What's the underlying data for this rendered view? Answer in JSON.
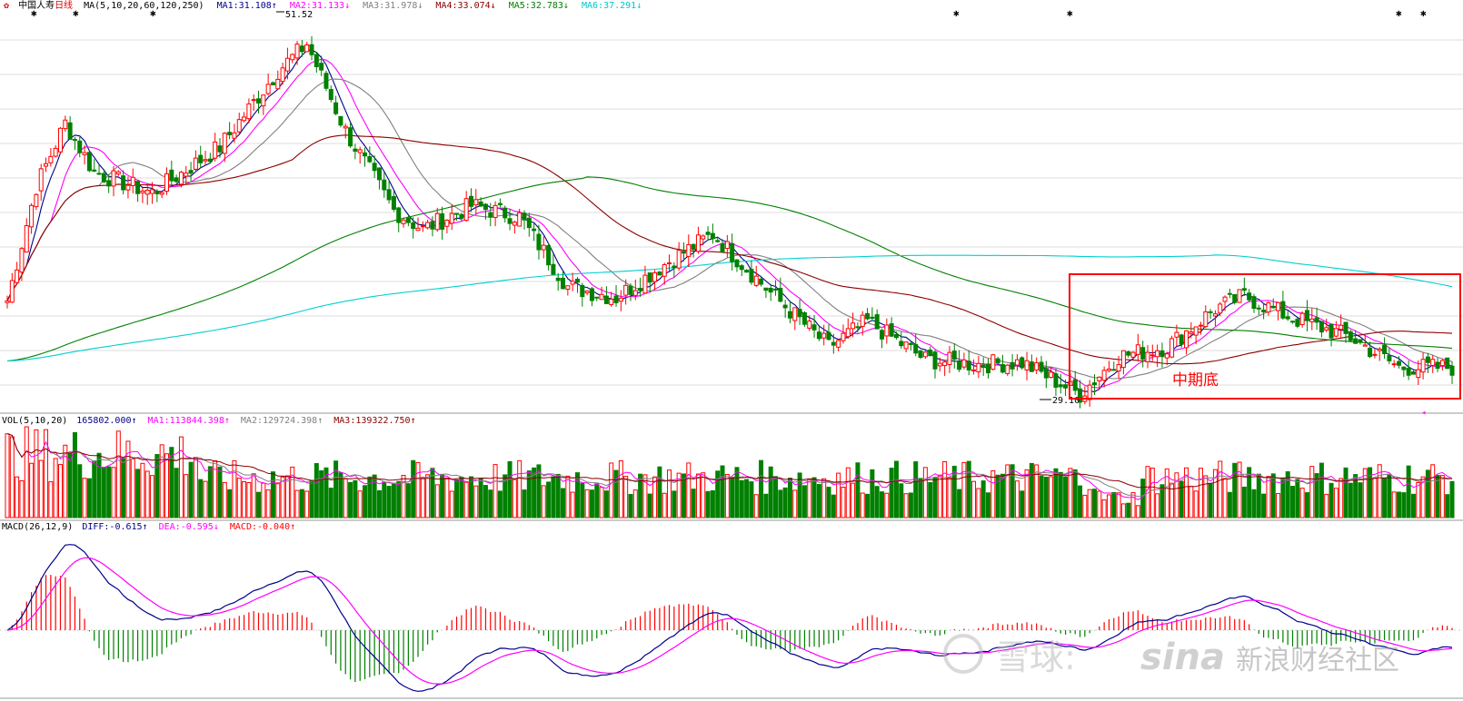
{
  "stock": {
    "name": "中国人寿",
    "period": "日线"
  },
  "price_panel": {
    "ma_spec": "MA(5,10,20,60,120,250)",
    "ma_values": [
      {
        "label": "MA1:",
        "value": "31.108↑",
        "color": "#00008b"
      },
      {
        "label": "MA2:",
        "value": "31.133↓",
        "color": "#ff00ff"
      },
      {
        "label": "MA3:",
        "value": "31.978↓",
        "color": "#808080"
      },
      {
        "label": "MA4:",
        "value": "33.074↓",
        "color": "#8b0000"
      },
      {
        "label": "MA5:",
        "value": "32.783↓",
        "color": "#008000"
      },
      {
        "label": "MA6:",
        "value": "37.291↓",
        "color": "#00d0d0"
      }
    ],
    "high_label": "51.52",
    "low_label": "29.10",
    "annotation": "中期底"
  },
  "volume_panel": {
    "spec": "VOL(5,10,20)",
    "value": "165802.000↑",
    "ma_values": [
      {
        "label": "MA1:",
        "value": "113844.398↑",
        "color": "#ff00ff"
      },
      {
        "label": "MA2:",
        "value": "129724.398↑",
        "color": "#808080"
      },
      {
        "label": "MA3:",
        "value": "139322.750↑",
        "color": "#8b0000"
      }
    ]
  },
  "macd_panel": {
    "spec": "MACD(26,12,9)",
    "values": [
      {
        "label": "DIFF:",
        "value": "-0.615↑",
        "color": "#00008b"
      },
      {
        "label": "DEA:",
        "value": "-0.595↓",
        "color": "#ff00ff"
      },
      {
        "label": "MACD:",
        "value": "-0.040↑",
        "color": "#ff0000"
      }
    ]
  },
  "watermark": {
    "xueqiu": "雪球:",
    "sina_logo": "sina",
    "sina_text": "新浪财经社区"
  },
  "colors": {
    "up": "#ff0000",
    "down": "#008000",
    "grid": "#dddddd",
    "box": "#ff0000"
  },
  "chart_data": {
    "type": "candlestick",
    "price_range_approx": [
      28.5,
      53.0
    ],
    "price_high": 51.52,
    "price_low": 29.1,
    "candle_count": 300,
    "price_path_keypoints": [
      {
        "bar": 0,
        "close": 35.3
      },
      {
        "bar": 6,
        "close": 42.5
      },
      {
        "bar": 12,
        "close": 46.5
      },
      {
        "bar": 18,
        "close": 43.4
      },
      {
        "bar": 30,
        "close": 42.1
      },
      {
        "bar": 44,
        "close": 45.0
      },
      {
        "bar": 56,
        "close": 49.8
      },
      {
        "bar": 62,
        "close": 51.5
      },
      {
        "bar": 70,
        "close": 46.0
      },
      {
        "bar": 80,
        "close": 41.0
      },
      {
        "bar": 86,
        "close": 39.8
      },
      {
        "bar": 96,
        "close": 41.3
      },
      {
        "bar": 106,
        "close": 40.6
      },
      {
        "bar": 116,
        "close": 36.2
      },
      {
        "bar": 126,
        "close": 35.5
      },
      {
        "bar": 136,
        "close": 37.6
      },
      {
        "bar": 146,
        "close": 39.5
      },
      {
        "bar": 158,
        "close": 35.8
      },
      {
        "bar": 170,
        "close": 32.4
      },
      {
        "bar": 178,
        "close": 34.0
      },
      {
        "bar": 190,
        "close": 31.6
      },
      {
        "bar": 200,
        "close": 31.3
      },
      {
        "bar": 210,
        "close": 31.4
      },
      {
        "bar": 222,
        "close": 29.4
      },
      {
        "bar": 230,
        "close": 31.8
      },
      {
        "bar": 240,
        "close": 32.4
      },
      {
        "bar": 250,
        "close": 34.8
      },
      {
        "bar": 256,
        "close": 35.6
      },
      {
        "bar": 266,
        "close": 34.2
      },
      {
        "bar": 278,
        "close": 33.0
      },
      {
        "bar": 288,
        "close": 31.1
      },
      {
        "bar": 299,
        "close": 31.1
      }
    ]
  }
}
